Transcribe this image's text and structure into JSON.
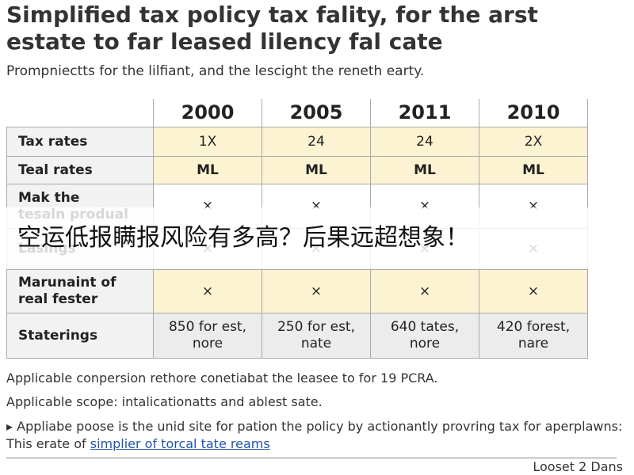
{
  "header": {
    "title_lines": [
      "Simplified tax policy tax fality, for the arst",
      "estate to far leased lilency fal cate"
    ],
    "subtitle": "Prompniectts for the lilfiant, and the lescight the reneth earty."
  },
  "table": {
    "columns": [
      "2000",
      "2005",
      "2011",
      "2010"
    ],
    "rows": [
      {
        "label": [
          "Tax rates"
        ],
        "cells": [
          [
            "1X"
          ],
          [
            "24"
          ],
          [
            "24"
          ],
          [
            "2X"
          ]
        ]
      },
      {
        "label": [
          "Teal rates"
        ],
        "cells": [
          [
            "ML"
          ],
          [
            "ML"
          ],
          [
            "ML"
          ],
          [
            "ML"
          ]
        ]
      },
      {
        "label": [
          "Mak the",
          "tesaln produal"
        ],
        "cells": [
          [
            "×"
          ],
          [
            "×"
          ],
          [
            "×"
          ],
          [
            "×"
          ]
        ]
      },
      {
        "label": [
          "Lasings"
        ],
        "cells": [
          [
            "×"
          ],
          [
            "×"
          ],
          [
            "×"
          ],
          [
            "×"
          ]
        ]
      },
      {
        "label": [
          "Marunaint of",
          "real fester"
        ],
        "cells": [
          [
            "×"
          ],
          [
            "×"
          ],
          [
            "×"
          ],
          [
            "×"
          ]
        ]
      },
      {
        "label": [
          "Staterings"
        ],
        "cells": [
          [
            "850 for est,",
            "nore"
          ],
          [
            "250 for est,",
            "nate"
          ],
          [
            "640 tates,",
            "nore"
          ],
          [
            "420 forest,",
            "nare"
          ]
        ]
      }
    ]
  },
  "banner": "空运低报瞒报风险有多高？后果远超想象！",
  "notes": [
    "Applicable conpersion rethore conetiabat the leasee to for 19 PCRA.",
    "Applicable scope: intalicationatts and ablest sate."
  ],
  "bullet": {
    "text": "Appliabe poose is the unid site for pation the policy by actionantly provring tax for aperplawns: This erate of",
    "link": "simplier of torcal tate reams"
  },
  "footer": "Looset 2 Dans"
}
